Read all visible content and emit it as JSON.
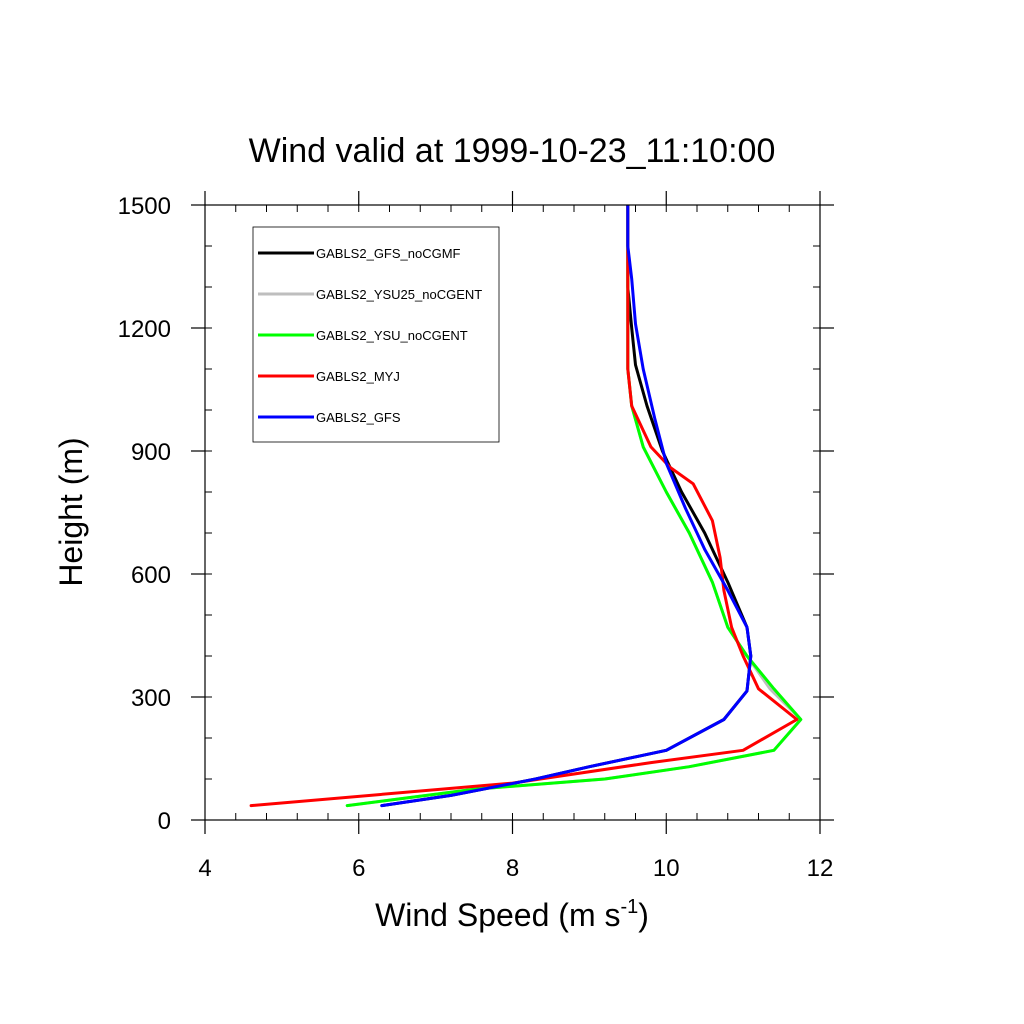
{
  "chart_data": {
    "type": "line",
    "title": "Wind valid at 1999-10-23_11:10:00",
    "xlabel": "Wind Speed (m s",
    "xlabel_superscript": "-1",
    "xlabel_suffix": ")",
    "ylabel": "Height (m)",
    "xlim": [
      4,
      12
    ],
    "ylim": [
      0,
      1500
    ],
    "x_ticks": [
      4,
      6,
      8,
      10,
      12
    ],
    "y_ticks": [
      0,
      300,
      600,
      900,
      1200,
      1500
    ],
    "x_minor_step": 0.4,
    "y_minor_step": 100,
    "grid": false,
    "legend_position": "top-left inside",
    "series": [
      {
        "name": "GABLS2_GFS_noCGMF",
        "color": "#000000",
        "points": [
          [
            6.3,
            35
          ],
          [
            7.2,
            60
          ],
          [
            8.3,
            100
          ],
          [
            9.0,
            130
          ],
          [
            10.0,
            170
          ],
          [
            10.75,
            245
          ],
          [
            11.05,
            315
          ],
          [
            11.1,
            400
          ],
          [
            11.05,
            470
          ],
          [
            10.8,
            580
          ],
          [
            10.5,
            700
          ],
          [
            10.2,
            800
          ],
          [
            9.95,
            900
          ],
          [
            9.75,
            1010
          ],
          [
            9.6,
            1110
          ],
          [
            9.55,
            1200
          ],
          [
            9.5,
            1300
          ],
          [
            9.5,
            1400
          ],
          [
            9.5,
            1500
          ]
        ]
      },
      {
        "name": "GABLS2_YSU25_noCGENT",
        "color": "#bebebe",
        "points": [
          [
            5.85,
            35
          ],
          [
            7.5,
            75
          ],
          [
            9.2,
            100
          ],
          [
            10.3,
            130
          ],
          [
            11.4,
            170
          ],
          [
            11.75,
            245
          ],
          [
            11.35,
            320
          ],
          [
            11.05,
            400
          ],
          [
            10.8,
            470
          ],
          [
            10.6,
            580
          ],
          [
            10.3,
            700
          ],
          [
            10.0,
            800
          ],
          [
            9.7,
            910
          ],
          [
            9.55,
            1010
          ],
          [
            9.5,
            1100
          ],
          [
            9.5,
            1200
          ],
          [
            9.5,
            1300
          ],
          [
            9.5,
            1400
          ],
          [
            9.5,
            1500
          ]
        ]
      },
      {
        "name": "GABLS2_YSU_noCGENT",
        "color": "#00ff00",
        "points": [
          [
            5.85,
            35
          ],
          [
            7.5,
            75
          ],
          [
            9.2,
            100
          ],
          [
            10.3,
            130
          ],
          [
            11.4,
            170
          ],
          [
            11.75,
            245
          ],
          [
            11.4,
            320
          ],
          [
            11.05,
            400
          ],
          [
            10.8,
            470
          ],
          [
            10.6,
            580
          ],
          [
            10.3,
            700
          ],
          [
            10.0,
            800
          ],
          [
            9.7,
            910
          ],
          [
            9.55,
            1010
          ],
          [
            9.5,
            1100
          ],
          [
            9.5,
            1200
          ],
          [
            9.5,
            1300
          ],
          [
            9.5,
            1400
          ],
          [
            9.5,
            1500
          ]
        ]
      },
      {
        "name": "GABLS2_MYJ",
        "color": "#ff0000",
        "points": [
          [
            4.6,
            35
          ],
          [
            8.0,
            90
          ],
          [
            9.8,
            140
          ],
          [
            11.0,
            170
          ],
          [
            11.7,
            245
          ],
          [
            11.2,
            320
          ],
          [
            11.0,
            400
          ],
          [
            10.85,
            470
          ],
          [
            10.75,
            560
          ],
          [
            10.7,
            640
          ],
          [
            10.6,
            730
          ],
          [
            10.35,
            820
          ],
          [
            10.05,
            860
          ],
          [
            9.8,
            910
          ],
          [
            9.55,
            1010
          ],
          [
            9.5,
            1100
          ],
          [
            9.5,
            1200
          ],
          [
            9.5,
            1300
          ],
          [
            9.5,
            1400
          ],
          [
            9.5,
            1500
          ]
        ]
      },
      {
        "name": "GABLS2_GFS",
        "color": "#0000ff",
        "points": [
          [
            6.3,
            35
          ],
          [
            7.2,
            60
          ],
          [
            8.3,
            100
          ],
          [
            9.0,
            130
          ],
          [
            10.0,
            170
          ],
          [
            10.75,
            245
          ],
          [
            11.05,
            315
          ],
          [
            11.1,
            400
          ],
          [
            11.05,
            470
          ],
          [
            10.8,
            560
          ],
          [
            10.5,
            660
          ],
          [
            10.25,
            760
          ],
          [
            10.0,
            870
          ],
          [
            9.85,
            980
          ],
          [
            9.7,
            1100
          ],
          [
            9.6,
            1210
          ],
          [
            9.55,
            1320
          ],
          [
            9.5,
            1400
          ],
          [
            9.5,
            1500
          ]
        ]
      }
    ]
  }
}
